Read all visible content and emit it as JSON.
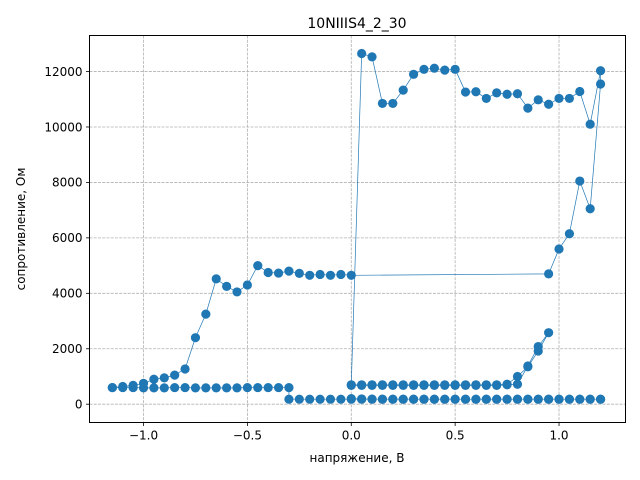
{
  "chart_data": {
    "type": "line",
    "title": "10NIIIS4_2_30",
    "xlabel": "напряжение, В",
    "ylabel": "сопротивление, Ом",
    "xlim": [
      -1.26,
      1.32
    ],
    "ylim": [
      -660,
      13300
    ],
    "xticks": [
      -1.0,
      -0.5,
      0.0,
      0.5,
      1.0
    ],
    "xtick_labels": [
      "−1.0",
      "−0.5",
      "0.0",
      "0.5",
      "1.0"
    ],
    "yticks": [
      0,
      2000,
      4000,
      6000,
      8000,
      10000,
      12000
    ],
    "ytick_labels": [
      "0",
      "2000",
      "4000",
      "6000",
      "8000",
      "10000",
      "12000"
    ],
    "grid": true,
    "color": "#1f77b4",
    "series": [
      {
        "points": [
          [
            0.0,
            200
          ],
          [
            0.05,
            190
          ],
          [
            0.1,
            185
          ],
          [
            0.15,
            180
          ],
          [
            0.2,
            180
          ],
          [
            0.25,
            180
          ],
          [
            0.3,
            180
          ],
          [
            0.35,
            180
          ],
          [
            0.4,
            180
          ],
          [
            0.45,
            180
          ],
          [
            0.5,
            180
          ],
          [
            0.55,
            180
          ],
          [
            0.6,
            180
          ],
          [
            0.65,
            180
          ],
          [
            0.7,
            180
          ],
          [
            0.75,
            180
          ],
          [
            0.8,
            180
          ],
          [
            0.85,
            180
          ],
          [
            0.9,
            180
          ],
          [
            0.95,
            180
          ],
          [
            1.0,
            180
          ],
          [
            1.05,
            180
          ],
          [
            1.1,
            180
          ],
          [
            1.15,
            180
          ],
          [
            1.2,
            180
          ],
          [
            1.2,
            180
          ],
          [
            1.15,
            180
          ],
          [
            1.1,
            180
          ],
          [
            1.05,
            180
          ],
          [
            1.0,
            180
          ],
          [
            0.95,
            180
          ],
          [
            0.9,
            180
          ],
          [
            0.85,
            180
          ],
          [
            0.8,
            180
          ],
          [
            0.75,
            180
          ],
          [
            0.7,
            180
          ],
          [
            0.65,
            180
          ],
          [
            0.6,
            180
          ],
          [
            0.55,
            180
          ],
          [
            0.5,
            180
          ],
          [
            0.45,
            180
          ],
          [
            0.4,
            180
          ],
          [
            0.35,
            180
          ],
          [
            0.3,
            180
          ],
          [
            0.25,
            180
          ],
          [
            0.2,
            180
          ],
          [
            0.15,
            180
          ],
          [
            0.1,
            180
          ],
          [
            0.05,
            180
          ],
          [
            0.0,
            180
          ],
          [
            -0.05,
            180
          ],
          [
            -0.1,
            180
          ],
          [
            -0.15,
            180
          ],
          [
            -0.2,
            180
          ],
          [
            -0.25,
            180
          ],
          [
            -0.3,
            180
          ],
          [
            -0.3,
            600
          ],
          [
            -0.35,
            600
          ],
          [
            -0.4,
            600
          ],
          [
            -0.45,
            600
          ],
          [
            -0.5,
            600
          ],
          [
            -0.55,
            590
          ],
          [
            -0.6,
            590
          ],
          [
            -0.65,
            590
          ],
          [
            -0.7,
            590
          ],
          [
            -0.75,
            590
          ],
          [
            -0.8,
            600
          ],
          [
            -0.85,
            600
          ],
          [
            -0.9,
            590
          ],
          [
            -0.95,
            590
          ],
          [
            -1.0,
            590
          ],
          [
            -1.05,
            600
          ],
          [
            -1.1,
            600
          ],
          [
            -1.15,
            600
          ],
          [
            -1.15,
            600
          ],
          [
            -1.1,
            640
          ],
          [
            -1.05,
            680
          ],
          [
            -1.0,
            750
          ],
          [
            -0.95,
            900
          ],
          [
            -0.9,
            950
          ],
          [
            -0.85,
            1050
          ],
          [
            -0.8,
            1270
          ],
          [
            -0.75,
            2400
          ],
          [
            -0.7,
            3250
          ],
          [
            -0.65,
            4520
          ],
          [
            -0.6,
            4250
          ],
          [
            -0.55,
            4050
          ],
          [
            -0.5,
            4300
          ],
          [
            -0.45,
            5000
          ],
          [
            -0.4,
            4750
          ],
          [
            -0.35,
            4730
          ],
          [
            -0.3,
            4800
          ],
          [
            -0.25,
            4720
          ],
          [
            -0.2,
            4650
          ],
          [
            -0.15,
            4680
          ],
          [
            -0.1,
            4650
          ],
          [
            -0.05,
            4680
          ],
          [
            0.0,
            4650
          ],
          [
            0.95,
            4700
          ],
          [
            1.0,
            5600
          ],
          [
            1.05,
            6150
          ],
          [
            1.1,
            8050
          ],
          [
            1.15,
            7050
          ],
          [
            1.2,
            11550
          ],
          [
            1.2,
            12030
          ],
          [
            1.15,
            10100
          ],
          [
            1.1,
            11280
          ],
          [
            1.05,
            11030
          ],
          [
            1.0,
            11030
          ],
          [
            0.95,
            10820
          ],
          [
            0.9,
            10980
          ],
          [
            0.85,
            10680
          ],
          [
            0.8,
            11200
          ],
          [
            0.75,
            11180
          ],
          [
            0.7,
            11230
          ],
          [
            0.65,
            11030
          ],
          [
            0.6,
            11270
          ],
          [
            0.55,
            11260
          ],
          [
            0.5,
            12080
          ],
          [
            0.45,
            12050
          ],
          [
            0.4,
            12120
          ],
          [
            0.35,
            12080
          ],
          [
            0.3,
            11900
          ],
          [
            0.25,
            11330
          ],
          [
            0.2,
            10850
          ],
          [
            0.15,
            10850
          ],
          [
            0.1,
            12530
          ],
          [
            0.05,
            12650
          ],
          [
            0.0,
            700
          ],
          [
            0.05,
            700
          ],
          [
            0.1,
            700
          ],
          [
            0.15,
            700
          ],
          [
            0.2,
            700
          ],
          [
            0.25,
            700
          ],
          [
            0.3,
            700
          ],
          [
            0.35,
            700
          ],
          [
            0.4,
            700
          ],
          [
            0.45,
            700
          ],
          [
            0.5,
            700
          ],
          [
            0.55,
            700
          ],
          [
            0.6,
            700
          ],
          [
            0.65,
            700
          ],
          [
            0.7,
            700
          ],
          [
            0.75,
            720
          ],
          [
            0.8,
            1000
          ],
          [
            0.85,
            1350
          ],
          [
            0.9,
            1920
          ],
          [
            0.95,
            2580
          ],
          [
            0.9,
            2080
          ],
          [
            0.85,
            1380
          ],
          [
            0.8,
            720
          ],
          [
            0.75,
            700
          ],
          [
            0.7,
            680
          ],
          [
            0.65,
            680
          ],
          [
            0.6,
            680
          ],
          [
            0.55,
            680
          ],
          [
            0.5,
            680
          ],
          [
            0.45,
            680
          ],
          [
            0.4,
            680
          ],
          [
            0.35,
            680
          ],
          [
            0.3,
            680
          ],
          [
            0.25,
            680
          ],
          [
            0.2,
            680
          ],
          [
            0.15,
            680
          ],
          [
            0.1,
            680
          ],
          [
            0.05,
            680
          ],
          [
            0.0,
            680
          ]
        ]
      }
    ]
  }
}
